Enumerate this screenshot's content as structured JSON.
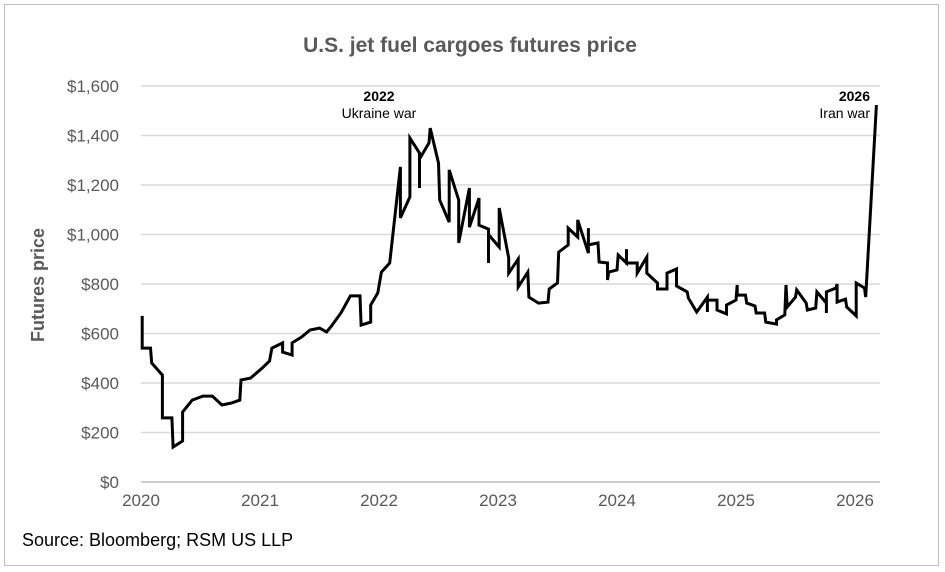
{
  "chart_data": {
    "type": "line",
    "title": "U.S. jet fuel cargoes futures price",
    "xlabel": "",
    "ylabel": "Futures price",
    "xlim": [
      2020,
      2026.2
    ],
    "ylim": [
      0,
      1600
    ],
    "x_ticks": [
      "2020",
      "2021",
      "2022",
      "2023",
      "2024",
      "2025",
      "2026"
    ],
    "y_ticks": [
      "$0",
      "$200",
      "$400",
      "$600",
      "$800",
      "$1,000",
      "$1,200",
      "$1,400",
      "$1,600"
    ],
    "grid": "horizontal",
    "line_color": "#000000",
    "annotations": [
      {
        "year_label": "2022",
        "text": "Ukraine war",
        "x": 2022.0,
        "y": 1530
      },
      {
        "year_label": "2026",
        "text": "Iran war",
        "x": 2025.85,
        "y": 1470
      }
    ],
    "points": [
      [
        2020.01,
        671
      ],
      [
        2020.01,
        541
      ],
      [
        2020.08,
        541
      ],
      [
        2020.09,
        481
      ],
      [
        2020.18,
        432
      ],
      [
        2020.18,
        259
      ],
      [
        2020.26,
        259
      ],
      [
        2020.27,
        141
      ],
      [
        2020.35,
        166
      ],
      [
        2020.35,
        283
      ],
      [
        2020.43,
        331
      ],
      [
        2020.52,
        347
      ],
      [
        2020.6,
        347
      ],
      [
        2020.68,
        311
      ],
      [
        2020.76,
        319
      ],
      [
        2020.83,
        331
      ],
      [
        2020.84,
        412
      ],
      [
        2020.92,
        420
      ],
      [
        2021.02,
        461
      ],
      [
        2021.08,
        489
      ],
      [
        2021.1,
        541
      ],
      [
        2021.19,
        562
      ],
      [
        2021.19,
        525
      ],
      [
        2021.27,
        513
      ],
      [
        2021.27,
        562
      ],
      [
        2021.35,
        586
      ],
      [
        2021.42,
        614
      ],
      [
        2021.5,
        622
      ],
      [
        2021.56,
        606
      ],
      [
        2021.6,
        630
      ],
      [
        2021.68,
        683
      ],
      [
        2021.76,
        752
      ],
      [
        2021.84,
        752
      ],
      [
        2021.85,
        634
      ],
      [
        2021.93,
        646
      ],
      [
        2021.93,
        715
      ],
      [
        2021.99,
        764
      ],
      [
        2022.02,
        848
      ],
      [
        2022.09,
        885
      ],
      [
        2022.18,
        1273
      ],
      [
        2022.18,
        1067
      ],
      [
        2022.26,
        1152
      ],
      [
        2022.26,
        1390
      ],
      [
        2022.34,
        1329
      ],
      [
        2022.34,
        1188
      ],
      [
        2022.34,
        1305
      ],
      [
        2022.42,
        1370
      ],
      [
        2022.43,
        1430
      ],
      [
        2022.5,
        1289
      ],
      [
        2022.51,
        1139
      ],
      [
        2022.59,
        1050
      ],
      [
        2022.59,
        1261
      ],
      [
        2022.67,
        1139
      ],
      [
        2022.67,
        966
      ],
      [
        2022.76,
        1188
      ],
      [
        2022.76,
        1030
      ],
      [
        2022.84,
        1147
      ],
      [
        2022.84,
        1038
      ],
      [
        2022.92,
        1022
      ],
      [
        2022.92,
        885
      ],
      [
        2022.92,
        1000
      ],
      [
        2023.01,
        949
      ],
      [
        2023.01,
        1107
      ],
      [
        2023.09,
        905
      ],
      [
        2023.09,
        844
      ],
      [
        2023.17,
        901
      ],
      [
        2023.17,
        788
      ],
      [
        2023.25,
        848
      ],
      [
        2023.26,
        747
      ],
      [
        2023.34,
        723
      ],
      [
        2023.42,
        727
      ],
      [
        2023.43,
        780
      ],
      [
        2023.5,
        804
      ],
      [
        2023.51,
        929
      ],
      [
        2023.59,
        958
      ],
      [
        2023.59,
        1026
      ],
      [
        2023.67,
        990
      ],
      [
        2023.67,
        1059
      ],
      [
        2023.76,
        925
      ],
      [
        2023.76,
        1026
      ],
      [
        2023.76,
        958
      ],
      [
        2023.84,
        966
      ],
      [
        2023.85,
        889
      ],
      [
        2023.92,
        885
      ],
      [
        2023.92,
        816
      ],
      [
        2023.93,
        848
      ],
      [
        2024.0,
        857
      ],
      [
        2024.01,
        917
      ],
      [
        2024.08,
        885
      ],
      [
        2024.08,
        941
      ],
      [
        2024.08,
        885
      ],
      [
        2024.17,
        885
      ],
      [
        2024.17,
        844
      ],
      [
        2024.25,
        909
      ],
      [
        2024.25,
        844
      ],
      [
        2024.34,
        804
      ],
      [
        2024.34,
        780
      ],
      [
        2024.42,
        780
      ],
      [
        2024.42,
        844
      ],
      [
        2024.5,
        861
      ],
      [
        2024.5,
        792
      ],
      [
        2024.59,
        768
      ],
      [
        2024.6,
        743
      ],
      [
        2024.67,
        687
      ],
      [
        2024.76,
        747
      ],
      [
        2024.76,
        687
      ],
      [
        2024.76,
        735
      ],
      [
        2024.84,
        735
      ],
      [
        2024.84,
        695
      ],
      [
        2024.92,
        679
      ],
      [
        2024.92,
        715
      ],
      [
        2025.0,
        735
      ],
      [
        2025.01,
        796
      ],
      [
        2025.01,
        755
      ],
      [
        2025.08,
        755
      ],
      [
        2025.09,
        723
      ],
      [
        2025.16,
        711
      ],
      [
        2025.17,
        683
      ],
      [
        2025.24,
        683
      ],
      [
        2025.25,
        646
      ],
      [
        2025.34,
        638
      ],
      [
        2025.34,
        655
      ],
      [
        2025.41,
        675
      ],
      [
        2025.42,
        796
      ],
      [
        2025.43,
        707
      ],
      [
        2025.5,
        747
      ],
      [
        2025.51,
        776
      ],
      [
        2025.59,
        723
      ],
      [
        2025.6,
        695
      ],
      [
        2025.67,
        703
      ],
      [
        2025.68,
        768
      ],
      [
        2025.76,
        723
      ],
      [
        2025.76,
        683
      ],
      [
        2025.76,
        768
      ],
      [
        2025.84,
        784
      ],
      [
        2025.85,
        800
      ],
      [
        2025.85,
        727
      ],
      [
        2025.92,
        739
      ],
      [
        2025.93,
        707
      ],
      [
        2026.01,
        671
      ],
      [
        2026.01,
        804
      ],
      [
        2026.08,
        784
      ],
      [
        2026.09,
        747
      ],
      [
        2026.18,
        1523
      ]
    ]
  },
  "footer": {
    "source": "Source: Bloomberg; RSM US LLP"
  }
}
